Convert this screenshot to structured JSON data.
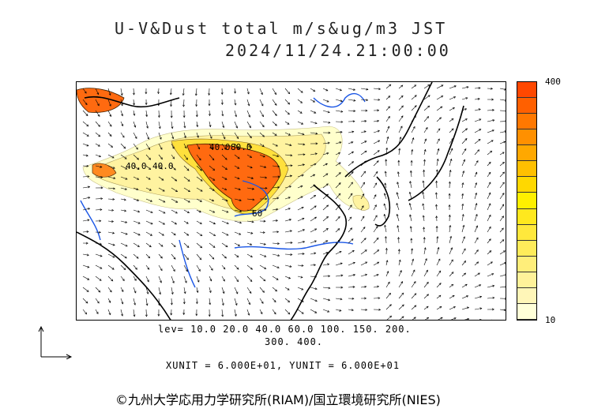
{
  "title_line1": "U-V&Dust total m/s&ug/m3 JST",
  "title_line2": "2024/11/24.21:00:00",
  "colorbar": {
    "max_label": "400",
    "min_label": "10",
    "colors": [
      "#ffffd8",
      "#fff6b8",
      "#fff29a",
      "#ffee7a",
      "#ffec5a",
      "#ffe83c",
      "#ffe81e",
      "#fff000",
      "#ffd800",
      "#ffc000",
      "#ffa800",
      "#ff9000",
      "#ff7800",
      "#ff6000",
      "#ff4800"
    ]
  },
  "contour_labels": [
    "40.0",
    "80.0",
    "40.0",
    "40.0",
    "60"
  ],
  "levels_line1": "lev= 10.0 20.0 40.0 60.0 100. 150. 200.",
  "levels_line2": "300. 400.",
  "units": "XUNIT = 6.000E+01, YUNIT = 6.000E+01",
  "credit": "©九州大学応用力学研究所(RIAM)/国立環境研究所(NIES)",
  "colors": {
    "coast": "#000000",
    "river": "#1a56e6",
    "dust_high": "#ff4800",
    "dust_low": "#ffffd8"
  }
}
